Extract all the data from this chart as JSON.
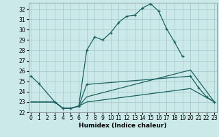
{
  "title": "",
  "xlabel": "Humidex (Indice chaleur)",
  "background_color": "#cce9e9",
  "grid_color": "#aacccc",
  "line_color": "#1a6060",
  "series": [
    {
      "x": [
        0,
        1,
        3,
        4,
        5,
        6,
        7,
        8,
        9,
        10,
        11,
        12,
        13,
        14,
        15,
        16,
        17,
        18,
        19
      ],
      "y": [
        25.5,
        24.8,
        23.0,
        22.4,
        22.4,
        22.6,
        28.0,
        29.3,
        29.0,
        29.7,
        30.7,
        31.3,
        31.4,
        32.1,
        32.5,
        31.8,
        30.1,
        28.8,
        27.4
      ],
      "has_markers": true
    },
    {
      "x": [
        3,
        4,
        5,
        6,
        7,
        20,
        21,
        22,
        23
      ],
      "y": [
        23.0,
        22.4,
        22.4,
        22.6,
        24.7,
        25.5,
        24.4,
        23.5,
        23.0
      ],
      "has_markers": true
    },
    {
      "x": [
        0,
        1,
        3,
        4,
        5,
        6,
        7,
        8,
        9,
        10,
        11,
        12,
        13,
        14,
        15,
        16,
        17,
        18,
        19,
        20,
        23
      ],
      "y": [
        23.0,
        23.0,
        23.0,
        22.4,
        22.4,
        22.6,
        23.5,
        23.7,
        23.9,
        24.1,
        24.3,
        24.5,
        24.7,
        24.9,
        25.1,
        25.3,
        25.5,
        25.7,
        25.9,
        26.1,
        23.0
      ],
      "has_markers": false
    },
    {
      "x": [
        0,
        1,
        3,
        4,
        5,
        6,
        7,
        8,
        9,
        10,
        11,
        12,
        13,
        14,
        15,
        16,
        17,
        18,
        19,
        20,
        23
      ],
      "y": [
        23.0,
        23.0,
        23.0,
        22.4,
        22.4,
        22.6,
        23.0,
        23.1,
        23.2,
        23.3,
        23.4,
        23.5,
        23.6,
        23.7,
        23.8,
        23.9,
        24.0,
        24.1,
        24.2,
        24.3,
        23.0
      ],
      "has_markers": false
    }
  ],
  "xlim": [
    -0.3,
    23.3
  ],
  "ylim": [
    22.0,
    32.6
  ],
  "yticks": [
    22,
    23,
    24,
    25,
    26,
    27,
    28,
    29,
    30,
    31,
    32
  ],
  "xticks": [
    0,
    1,
    2,
    3,
    4,
    5,
    6,
    7,
    8,
    9,
    10,
    11,
    12,
    13,
    14,
    15,
    16,
    17,
    18,
    19,
    20,
    21,
    22,
    23
  ]
}
